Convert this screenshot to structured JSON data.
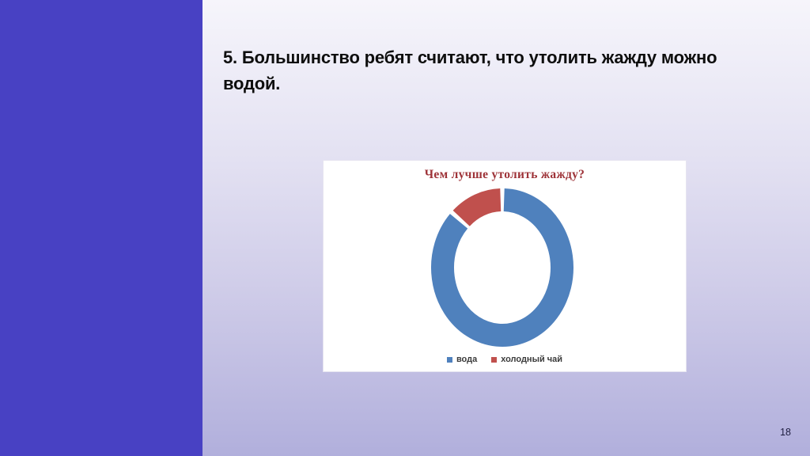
{
  "slide": {
    "title": "5. Большинство ребят считают, что утолить жажду можно водой.",
    "page_number": "18"
  },
  "colors": {
    "sidebar": "#4841c3",
    "background_top": "#f6f5fb",
    "background_bottom": "#b1afdc",
    "panel_background": "#ffffff",
    "chart_title_text": "#9e3338",
    "slide_title_text": "#0e0e0e",
    "series_water": "#4f81bd",
    "series_cold_tea": "#c0504d"
  },
  "chart_data": {
    "type": "pie",
    "subtype": "doughnut",
    "title": "Чем лучше утолить жажду?",
    "categories": [
      "вода",
      "холодный чай"
    ],
    "values": [
      87.5,
      12.5
    ],
    "values_unit": "percent (estimated from arc angles)",
    "colors": [
      "#4f81bd",
      "#c0504d"
    ],
    "legend_position": "bottom",
    "start_angle_deg": 0,
    "direction": "clockwise",
    "hole": true
  }
}
